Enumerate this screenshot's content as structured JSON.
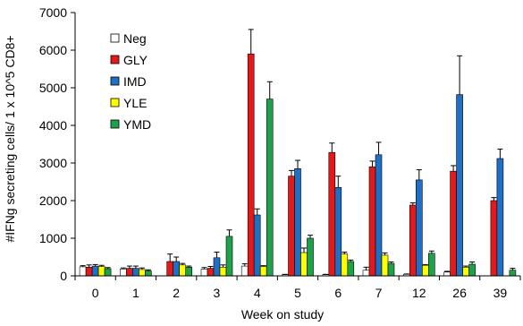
{
  "chart_data": {
    "type": "bar",
    "xlabel": "Week on study",
    "ylabel": "#IFNg secreting cells/ 1 x 10^5 CD8+",
    "ylim": [
      0,
      7000
    ],
    "yticks": [
      0,
      1000,
      2000,
      3000,
      4000,
      5000,
      6000,
      7000
    ],
    "categories": [
      "0",
      "1",
      "2",
      "3",
      "4",
      "5",
      "6",
      "7",
      "12",
      "26",
      "39"
    ],
    "grid": false,
    "error_bars": "upper",
    "legend_position": "top-left",
    "series": [
      {
        "name": "Neg",
        "color": "#ffffff",
        "values": [
          240,
          180,
          0,
          180,
          260,
          30,
          30,
          150,
          40,
          100,
          0
        ],
        "errors": [
          30,
          30,
          0,
          40,
          60,
          10,
          10,
          80,
          10,
          20,
          0
        ]
      },
      {
        "name": "GLY",
        "color": "#e31a1c",
        "values": [
          230,
          200,
          380,
          200,
          5900,
          2650,
          3280,
          2900,
          1880,
          2780,
          2000
        ],
        "errors": [
          60,
          60,
          200,
          50,
          650,
          150,
          250,
          150,
          60,
          150,
          80
        ]
      },
      {
        "name": "IMD",
        "color": "#1f6fc5",
        "values": [
          260,
          200,
          380,
          480,
          1620,
          2850,
          2350,
          3220,
          2550,
          4820,
          3120
        ],
        "errors": [
          40,
          60,
          120,
          150,
          160,
          220,
          300,
          330,
          270,
          1030,
          250
        ]
      },
      {
        "name": "YLE",
        "color": "#ffff00",
        "values": [
          250,
          170,
          290,
          230,
          250,
          620,
          580,
          550,
          280,
          230,
          0
        ],
        "errors": [
          30,
          40,
          40,
          60,
          20,
          120,
          50,
          60,
          20,
          30,
          0
        ]
      },
      {
        "name": "YMD",
        "color": "#1fa04a",
        "values": [
          190,
          130,
          230,
          1050,
          4700,
          1000,
          380,
          330,
          600,
          310,
          150
        ],
        "errors": [
          30,
          30,
          30,
          170,
          460,
          80,
          40,
          40,
          60,
          60,
          50
        ]
      }
    ]
  }
}
